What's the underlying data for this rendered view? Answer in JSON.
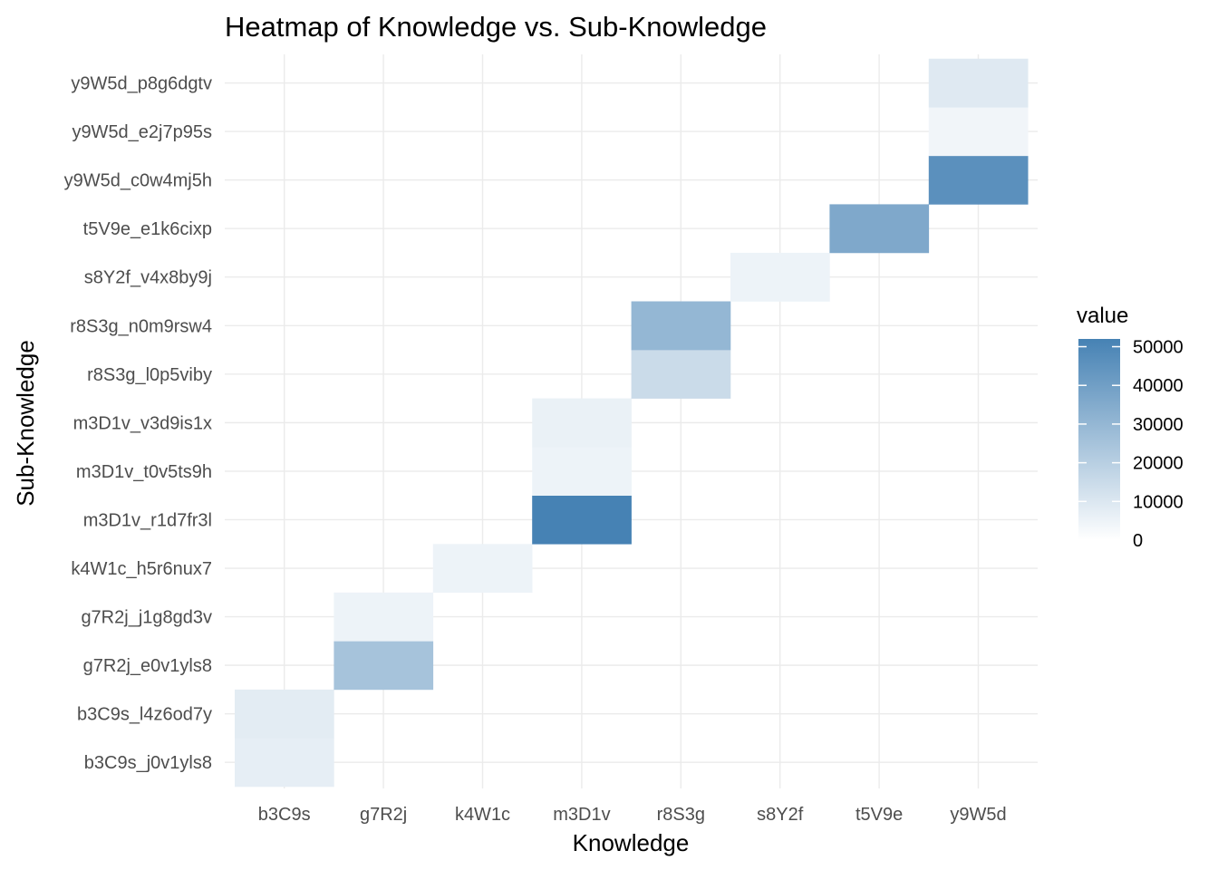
{
  "chart_data": {
    "type": "heatmap",
    "title": "Heatmap of Knowledge vs. Sub-Knowledge",
    "xlabel": "Knowledge",
    "ylabel": "Sub-Knowledge",
    "x_categories": [
      "b3C9s",
      "g7R2j",
      "k4W1c",
      "m3D1v",
      "r8S3g",
      "s8Y2f",
      "t5V9e",
      "y9W5d"
    ],
    "y_categories": [
      "b3C9s_j0v1yls8",
      "b3C9s_l4z6od7y",
      "g7R2j_e0v1yls8",
      "g7R2j_j1g8gd3v",
      "k4W1c_h5r6nux7",
      "m3D1v_r1d7fr3l",
      "m3D1v_t0v5ts9h",
      "m3D1v_v3d9is1x",
      "r8S3g_l0p5viby",
      "r8S3g_n0m9rsw4",
      "s8Y2f_v4x8by9j",
      "t5V9e_e1k6cixp",
      "y9W5d_c0w4mj5h",
      "y9W5d_e2j7p95s",
      "y9W5d_p8g6dgtv"
    ],
    "cells": [
      {
        "x": "b3C9s",
        "y": "b3C9s_j0v1yls8",
        "value": 7000
      },
      {
        "x": "b3C9s",
        "y": "b3C9s_l4z6od7y",
        "value": 8000
      },
      {
        "x": "g7R2j",
        "y": "g7R2j_e0v1yls8",
        "value": 25000
      },
      {
        "x": "g7R2j",
        "y": "g7R2j_j1g8gd3v",
        "value": 5000
      },
      {
        "x": "k4W1c",
        "y": "k4W1c_h5r6nux7",
        "value": 5000
      },
      {
        "x": "m3D1v",
        "y": "m3D1v_r1d7fr3l",
        "value": 52000
      },
      {
        "x": "m3D1v",
        "y": "m3D1v_t0v5ts9h",
        "value": 5000
      },
      {
        "x": "m3D1v",
        "y": "m3D1v_v3d9is1x",
        "value": 6000
      },
      {
        "x": "r8S3g",
        "y": "r8S3g_l0p5viby",
        "value": 15000
      },
      {
        "x": "r8S3g",
        "y": "r8S3g_n0m9rsw4",
        "value": 30000
      },
      {
        "x": "s8Y2f",
        "y": "s8Y2f_v4x8by9j",
        "value": 5000
      },
      {
        "x": "t5V9e",
        "y": "t5V9e_e1k6cixp",
        "value": 36000
      },
      {
        "x": "y9W5d",
        "y": "y9W5d_c0w4mj5h",
        "value": 46000
      },
      {
        "x": "y9W5d",
        "y": "y9W5d_e2j7p95s",
        "value": 4000
      },
      {
        "x": "y9W5d",
        "y": "y9W5d_p8g6dgtv",
        "value": 9000
      }
    ],
    "legend": {
      "title": "value",
      "ticks": [
        0,
        10000,
        20000,
        30000,
        40000,
        50000
      ],
      "tick_labels": [
        "0",
        "10000",
        "20000",
        "30000",
        "40000",
        "50000"
      ],
      "min": 0,
      "max": 52000,
      "low_color": "#ffffff",
      "high_color": "#4682b4",
      "placement": "right"
    },
    "grid": true
  }
}
